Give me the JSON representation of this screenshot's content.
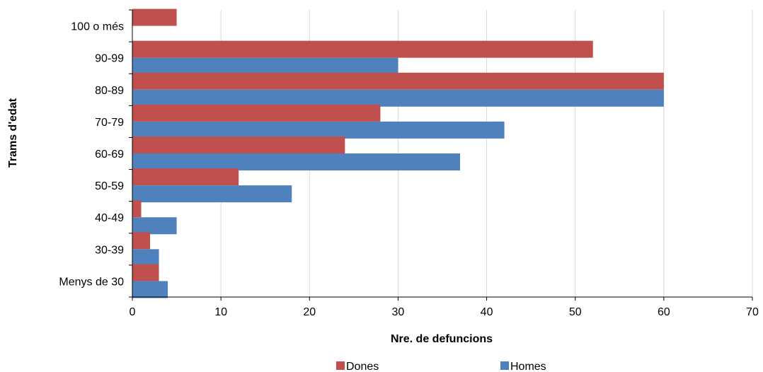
{
  "chart_data": {
    "type": "bar",
    "orientation": "horizontal",
    "categories": [
      "100 o més",
      "90-99",
      "80-89",
      "70-79",
      "60-69",
      "50-59",
      "40-49",
      "30-39",
      "Menys de 30"
    ],
    "series": [
      {
        "name": "Dones",
        "color": "#c0504d",
        "values": [
          5,
          52,
          60,
          28,
          24,
          12,
          1,
          2,
          3
        ]
      },
      {
        "name": "Homes",
        "color": "#4f81bd",
        "values": [
          0,
          30,
          60,
          42,
          37,
          18,
          5,
          3,
          4
        ]
      }
    ],
    "xlabel": "Nre. de defuncions",
    "ylabel": "Trams d'edat",
    "xlim": [
      0,
      70
    ],
    "xticks": [
      0,
      10,
      20,
      30,
      40,
      50,
      60,
      70
    ],
    "grid": "vertical",
    "legend_position": "bottom"
  }
}
